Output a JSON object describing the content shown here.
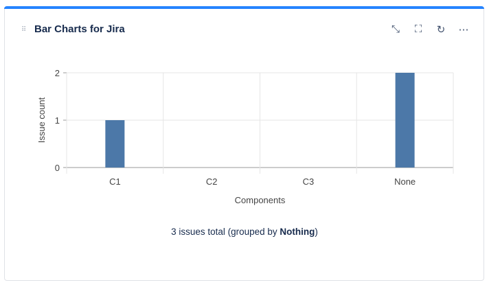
{
  "gadget": {
    "title": "Bar Charts for Jira",
    "icons": [
      "minimize-icon",
      "fullscreen-icon",
      "refresh-icon",
      "more-icon"
    ],
    "summary_prefix": "3 issues total (grouped by ",
    "summary_group": "Nothing",
    "summary_suffix": ")"
  },
  "chart_data": {
    "type": "bar",
    "categories": [
      "C1",
      "C2",
      "C3",
      "None"
    ],
    "values": [
      1,
      0,
      0,
      2
    ],
    "xlabel": "Components",
    "ylabel": "Issue count",
    "ylim": [
      0,
      2
    ],
    "yticks": [
      "0",
      "1",
      "2"
    ],
    "grid": true,
    "bar_color": "#4c78a8"
  }
}
